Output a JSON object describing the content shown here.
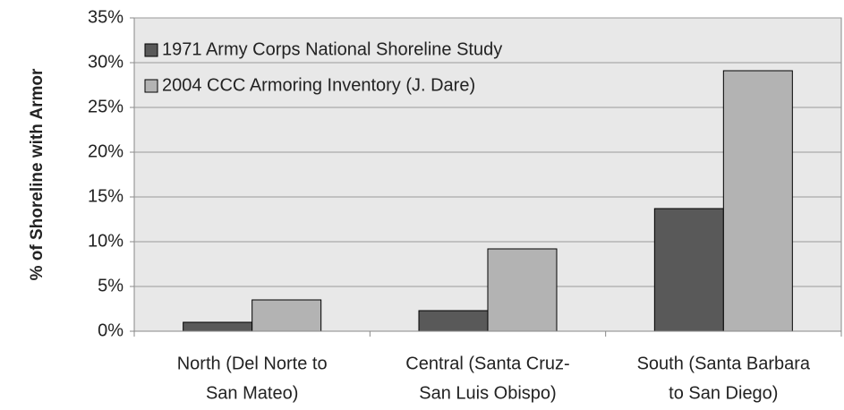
{
  "chart_data": {
    "type": "bar",
    "y_label": "% of Shoreline with Armor",
    "categories": [
      [
        "North (Del Norte to",
        "San Mateo)"
      ],
      [
        "Central (Santa Cruz-",
        "San Luis Obispo)"
      ],
      [
        "South (Santa Barbara",
        "to San Diego)"
      ]
    ],
    "series": [
      {
        "name": "1971 Army Corps National Shoreline Study",
        "color": "#595959",
        "values": [
          1.0,
          2.3,
          13.7
        ]
      },
      {
        "name": "2004 CCC Armoring Inventory (J. Dare)",
        "color": "#b3b3b3",
        "values": [
          3.5,
          9.2,
          29.1
        ]
      }
    ],
    "ylim": [
      0,
      35
    ],
    "yticks": [
      {
        "value": 0,
        "label": "0%"
      },
      {
        "value": 5,
        "label": "5%"
      },
      {
        "value": 10,
        "label": "10%"
      },
      {
        "value": 15,
        "label": "15%"
      },
      {
        "value": 20,
        "label": "20%"
      },
      {
        "value": 25,
        "label": "25%"
      },
      {
        "value": 30,
        "label": "30%"
      },
      {
        "value": 35,
        "label": "35%"
      }
    ],
    "grid": true,
    "legend": "top-left"
  }
}
